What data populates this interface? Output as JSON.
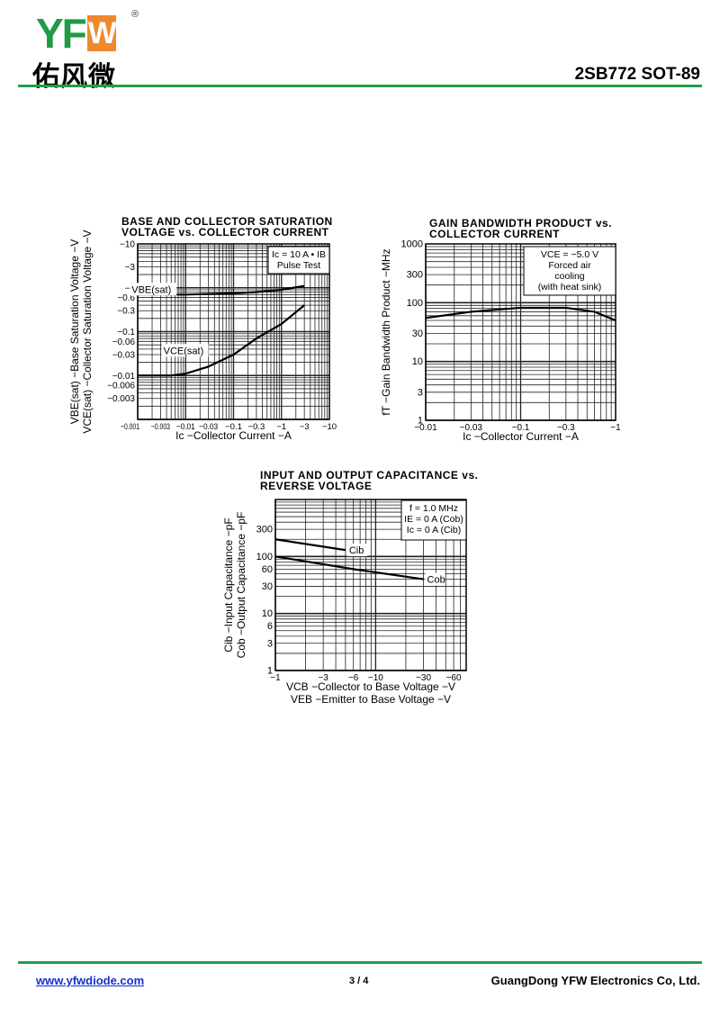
{
  "header": {
    "logo_text": "YFW",
    "logo_cn": "佑风微",
    "registered": "®",
    "part": "2SB772  SOT-89"
  },
  "footer": {
    "website": "www.yfwdiode.com",
    "page": "3 / 4",
    "company": "GuangDong YFW Electronics Co, Ltd."
  },
  "colors": {
    "brand_green": "#1f9a45",
    "brand_orange": "#ef8a2c",
    "link": "#1030d0"
  },
  "chart_data": [
    {
      "type": "line",
      "title_lines": [
        "BASE AND COLLECTOR SATURATION",
        "VOLTAGE vs. COLLECTOR CURRENT"
      ],
      "xlabel": "Ic −Collector  Current −A",
      "ylabel_lines": [
        "VBE(sat) −Base  Saturation  Voltage −V",
        "VCE(sat) −Collector  Saturation  Voltage −V"
      ],
      "x_scale": "log",
      "y_scale": "log",
      "xlim": [
        0.001,
        10
      ],
      "ylim": [
        0.001,
        10
      ],
      "grid": true,
      "xticks": [
        "−0.001",
        "−0.003",
        "−0.01",
        "−0.03",
        "−0.1",
        "−0.3",
        "−1",
        "−3",
        "−10"
      ],
      "xtick_values": [
        0.001,
        0.003,
        0.01,
        0.03,
        0.1,
        0.3,
        1,
        3,
        10
      ],
      "yticks": [
        "−10",
        "−3",
        "−1",
        "−0.6",
        "−0.3",
        "−0.1",
        "−0.06",
        "−0.03",
        "−0.01",
        "−0.006",
        "−0.003"
      ],
      "ytick_values": [
        10,
        3,
        1,
        0.6,
        0.3,
        0.1,
        0.06,
        0.03,
        0.01,
        0.006,
        0.003
      ],
      "annotation_lines": [
        "Ic = 10 A • IB",
        "Pulse Test"
      ],
      "series": [
        {
          "name": "VBE(sat)",
          "x": [
            0.001,
            0.01,
            0.1,
            0.3,
            1,
            3
          ],
          "y": [
            0.7,
            0.7,
            0.75,
            0.8,
            0.9,
            1.1
          ]
        },
        {
          "name": "VCE(sat)",
          "x": [
            0.001,
            0.005,
            0.01,
            0.03,
            0.1,
            0.3,
            1,
            3
          ],
          "y": [
            0.01,
            0.01,
            0.011,
            0.016,
            0.03,
            0.07,
            0.15,
            0.4
          ]
        }
      ]
    },
    {
      "type": "line",
      "title_lines": [
        "GAIN BANDWIDTH PRODUCT vs.",
        "COLLECTOR CURRENT"
      ],
      "xlabel": "Ic −Collector  Current −A",
      "ylabel_lines": [
        "fT −Gain  Bandwidth  Product −MHz"
      ],
      "x_scale": "log",
      "y_scale": "log",
      "xlim": [
        0.01,
        1
      ],
      "ylim": [
        1,
        1000
      ],
      "grid": true,
      "xticks": [
        "−0.01",
        "−0.03",
        "−0.1",
        "−0.3",
        "−1"
      ],
      "xtick_values": [
        0.01,
        0.03,
        0.1,
        0.3,
        1
      ],
      "yticks": [
        "1000",
        "300",
        "100",
        "30",
        "10",
        "3",
        "1"
      ],
      "ytick_values": [
        1000,
        300,
        100,
        30,
        10,
        3,
        1
      ],
      "annotation_lines": [
        "VCE = −5.0 V",
        "Forced air",
        "cooling",
        "(with heat sink)"
      ],
      "series": [
        {
          "name": "fT",
          "x": [
            0.01,
            0.03,
            0.1,
            0.3,
            0.6,
            1
          ],
          "y": [
            55,
            70,
            82,
            82,
            70,
            50
          ]
        }
      ]
    },
    {
      "type": "line",
      "title_lines": [
        "INPUT AND OUTPUT CAPACITANCE vs.",
        "REVERSE VOLTAGE"
      ],
      "xlabel_lines": [
        "VCB −Collector  to  Base  Voltage −V",
        "VEB −Emitter  to  Base  Voltage −V"
      ],
      "ylabel_lines": [
        "Cib −Input  Capacitance −pF",
        "Cob −Output  Capacitance −pF"
      ],
      "x_scale": "log",
      "y_scale": "log",
      "xlim": [
        1,
        80
      ],
      "ylim": [
        1,
        1000
      ],
      "grid": true,
      "xticks": [
        "−1",
        "−3",
        "−6",
        "−10",
        "−30",
        "−60"
      ],
      "xtick_values": [
        1,
        3,
        6,
        10,
        30,
        60
      ],
      "yticks": [
        "300",
        "100",
        "60",
        "30",
        "10",
        "6",
        "3",
        "1"
      ],
      "ytick_values": [
        300,
        100,
        60,
        30,
        10,
        6,
        3,
        1
      ],
      "annotation_lines": [
        "f = 1.0  MHz",
        "IE = 0 A (Cob)",
        "Ic = 0 A (Cib)"
      ],
      "series": [
        {
          "name": "Cib",
          "x": [
            1,
            5
          ],
          "y": [
            200,
            130
          ]
        },
        {
          "name": "Cob",
          "x": [
            1,
            6,
            30
          ],
          "y": [
            100,
            60,
            40
          ]
        }
      ]
    }
  ]
}
